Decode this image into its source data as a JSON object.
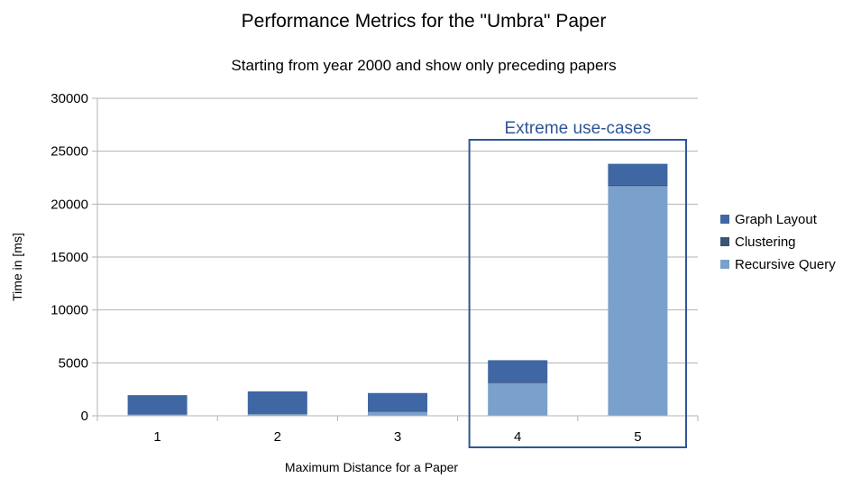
{
  "chart_data": {
    "type": "bar",
    "stacked": true,
    "title": "Performance Metrics for the \"Umbra\" Paper",
    "subtitle": "Starting from year 2000 and show only preceding papers",
    "xlabel": "Maximum Distance for a Paper",
    "ylabel": "Time in [ms]",
    "ylim": [
      0,
      30000
    ],
    "yticks": [
      0,
      5000,
      10000,
      15000,
      20000,
      25000,
      30000
    ],
    "categories": [
      "1",
      "2",
      "3",
      "4",
      "5"
    ],
    "series": [
      {
        "name": "Recursive Query",
        "color": "#7aa0cc",
        "values": [
          100,
          150,
          330,
          3050,
          21700
        ]
      },
      {
        "name": "Clustering",
        "color": "#3a5478",
        "values": [
          20,
          20,
          30,
          80,
          120
        ]
      },
      {
        "name": "Graph Layout",
        "color": "#3f67a3",
        "values": [
          1830,
          2130,
          1790,
          2120,
          1990
        ]
      }
    ],
    "legend": {
      "placement": "right",
      "order": [
        "Graph Layout",
        "Clustering",
        "Recursive Query"
      ]
    },
    "grid": {
      "horizontal": true,
      "vertical": false
    },
    "annotation": {
      "text": "Extreme use-cases",
      "categories": [
        "4",
        "5"
      ],
      "color": "#2f5597"
    }
  }
}
